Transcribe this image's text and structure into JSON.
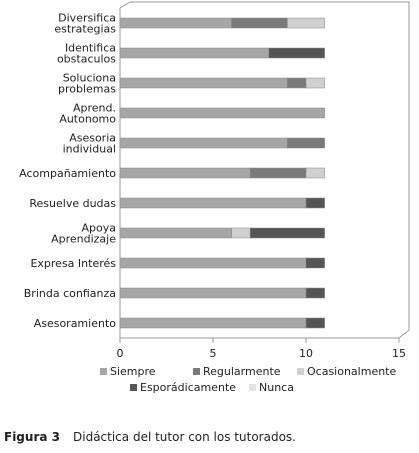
{
  "chart_data": {
    "type": "stacked-barh",
    "categories": [
      "Diversifica\nestrategias",
      "Identifica\nobstaculos",
      "Soluciona\nproblemas",
      "Aprend.\nAutonomo",
      "Asesoria\nindividual",
      "Acompañamiento",
      "Resuelve dudas",
      "Apoya\nAprendizaje",
      "Expresa Interés",
      "Brinda confianza",
      "Asesoramiento"
    ],
    "series": [
      {
        "name": "Siempre",
        "color": "#a6a6a6",
        "values": [
          6,
          8,
          9,
          11,
          9,
          7,
          10,
          6,
          10,
          10,
          10
        ]
      },
      {
        "name": "Regularmente",
        "color": "#7a7a7a",
        "values": [
          3,
          0,
          1,
          0,
          2,
          3,
          0,
          0,
          0,
          0,
          0
        ]
      },
      {
        "name": "Ocasionalmente",
        "color": "#d0d0d0",
        "values": [
          2,
          0,
          1,
          0,
          0,
          1,
          0,
          1,
          0,
          0,
          0
        ]
      },
      {
        "name": "Esporádicamente",
        "color": "#555555",
        "values": [
          0,
          3,
          0,
          0,
          0,
          0,
          1,
          4,
          1,
          1,
          1
        ]
      },
      {
        "name": "Nunca",
        "color": "#e4e4e4",
        "values": [
          0,
          0,
          0,
          0,
          0,
          0,
          0,
          0,
          0,
          0,
          0
        ]
      }
    ],
    "xlim": [
      0,
      15
    ],
    "xticks": [
      0,
      5,
      10,
      15
    ]
  },
  "caption": {
    "label": "Figura 3",
    "text": "Didáctica del tutor con los tutorados."
  }
}
